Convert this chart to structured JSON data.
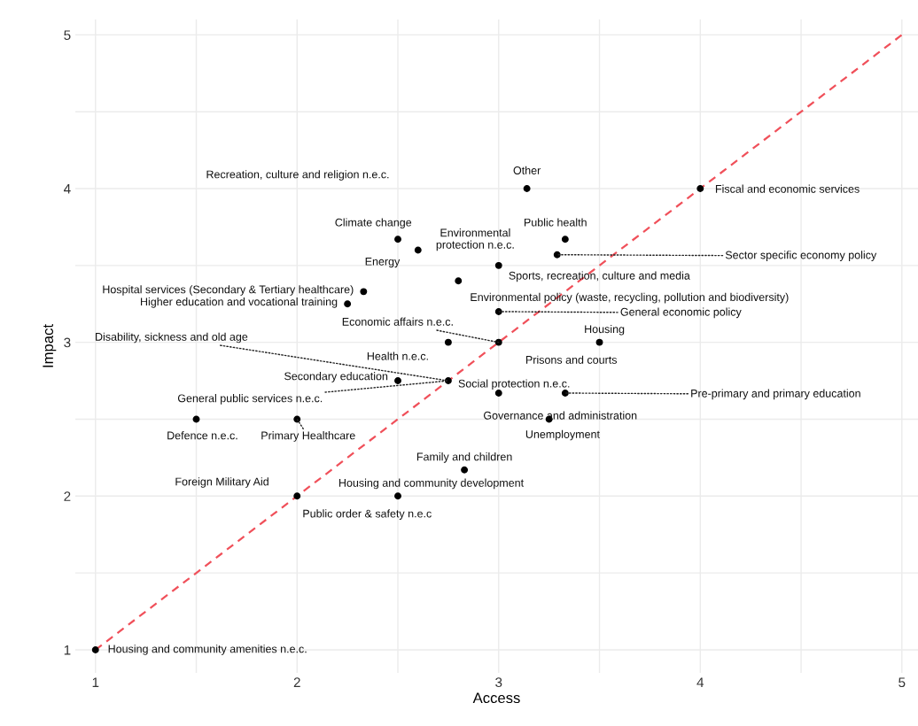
{
  "chart_data": {
    "type": "scatter",
    "xlabel": "Access",
    "ylabel": "Impact",
    "xlim": [
      0.9,
      5.08
    ],
    "ylim": [
      0.85,
      5.1
    ],
    "xticks": [
      1,
      {
        "value": 1.5,
        "label": null
      },
      2,
      {
        "value": 2.5,
        "label": null
      },
      3,
      {
        "value": 3.5,
        "label": null
      },
      4,
      {
        "value": 4.5,
        "label": null
      },
      5
    ],
    "yticks": [
      1,
      {
        "value": 1.5,
        "label": null
      },
      2,
      {
        "value": 2.5,
        "label": null
      },
      3,
      {
        "value": 3.5,
        "label": null
      },
      4,
      {
        "value": 4.5,
        "label": null
      },
      5
    ],
    "grid": true,
    "marker": "circle",
    "series": [
      {
        "type": "line",
        "color": "#f0505a",
        "line_style": "dashed",
        "marker": "none",
        "x": [
          1,
          5
        ],
        "values": [
          1,
          5
        ]
      },
      {
        "color": "#000000",
        "x": [
          1,
          2,
          2.5,
          2.83,
          1.5,
          2,
          2.5,
          2.75,
          2.75,
          3,
          3.5,
          3,
          3.33,
          3.25,
          3,
          2.25,
          2.33,
          2.8,
          3,
          2.6,
          2.5,
          3.33,
          3.29,
          3.14,
          4
        ],
        "values": [
          1,
          2,
          2,
          2.17,
          2.5,
          2.5,
          2.75,
          2.75,
          3,
          3,
          3,
          2.67,
          2.67,
          2.5,
          3.2,
          3.25,
          3.33,
          3.4,
          3.5,
          3.6,
          3.67,
          3.67,
          3.57,
          4,
          4
        ]
      }
    ],
    "annotations": [
      {
        "text": "Housing and community amenities n.e.c.",
        "x": 1,
        "y": 1
      },
      {
        "text": "Foreign Military Aid",
        "x": 2,
        "y": 2
      },
      {
        "text": "Housing and community development",
        "x": 2.5,
        "y": 2
      },
      {
        "text": "Public order & safety n.e.c",
        "x": 2.5,
        "y": 2
      },
      {
        "text": "Family and children",
        "x": 2.83,
        "y": 2.17
      },
      {
        "text": "Defence n.e.c.",
        "x": 1.5,
        "y": 2.5
      },
      {
        "text": "Primary Healthcare",
        "x": 2,
        "y": 2.5
      },
      {
        "text": "Secondary education",
        "x": 2.5,
        "y": 2.75
      },
      {
        "text": "General public services n.e.c.",
        "x": 2.75,
        "y": 2.75
      },
      {
        "text": "Disability, sickness and old age",
        "x": 2.75,
        "y": 2.75
      },
      {
        "text": "Social protection n.e.c.",
        "x": 2.75,
        "y": 2.75
      },
      {
        "text": "Health n.e.c.",
        "x": 2.75,
        "y": 3
      },
      {
        "text": "Economic affairs n.e.c.",
        "x": 3,
        "y": 3
      },
      {
        "text": "Prisons and courts",
        "x": 3,
        "y": 3
      },
      {
        "text": "Housing",
        "x": 3.5,
        "y": 3
      },
      {
        "text": "Governance and administration",
        "x": 3,
        "y": 2.67
      },
      {
        "text": "Pre-primary and primary education",
        "x": 3.33,
        "y": 2.67
      },
      {
        "text": "Unemployment",
        "x": 3.25,
        "y": 2.5
      },
      {
        "text": "General economic policy",
        "x": 3,
        "y": 3.2
      },
      {
        "text": "Higher education and vocational training",
        "x": 2.25,
        "y": 3.25
      },
      {
        "text": "Hospital services (Secondary & Tertiary healthcare)",
        "x": 2.33,
        "y": 3.33
      },
      {
        "text": "Environmental policy (waste, recycling, pollution and biodiversity)",
        "x": 2.8,
        "y": 3.4
      },
      {
        "text": "Sports, recreation, culture and media",
        "x": 3,
        "y": 3.5
      },
      {
        "text": "Environmental\nprotection n.e.c.",
        "x": 3,
        "y": 3.5
      },
      {
        "text": "Energy",
        "x": 2.6,
        "y": 3.6
      },
      {
        "text": "Climate change",
        "x": 2.5,
        "y": 3.67
      },
      {
        "text": "Public health",
        "x": 3.33,
        "y": 3.67
      },
      {
        "text": "Sector specific economy policy",
        "x": 3.29,
        "y": 3.57
      },
      {
        "text": "Other",
        "x": 3.14,
        "y": 4
      },
      "Recreation, culture and religion n.e.c.",
      {
        "text": "Fiscal and economic services",
        "x": 4,
        "y": 4
      }
    ]
  }
}
